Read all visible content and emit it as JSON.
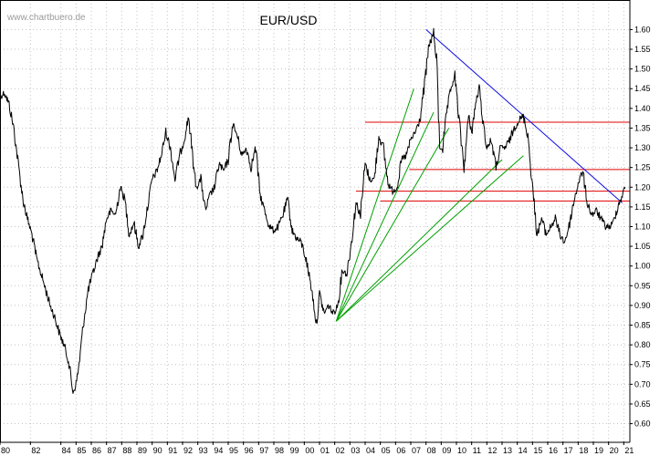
{
  "chart_data": {
    "type": "line",
    "title": "EUR/USD",
    "watermark": "www.chartbuero.de",
    "xlabel": "",
    "ylabel": "",
    "x_range": [
      1980.0,
      2021.4
    ],
    "ylim": [
      0.555,
      1.675
    ],
    "y_ticks": [
      0.6,
      0.65,
      0.7,
      0.75,
      0.8,
      0.85,
      0.9,
      0.95,
      1.0,
      1.05,
      1.1,
      1.15,
      1.2,
      1.25,
      1.3,
      1.35,
      1.4,
      1.45,
      1.5,
      1.55,
      1.6
    ],
    "y_tick_labels": [
      "0.60",
      "0.65",
      "0.70",
      "0.75",
      "0.80",
      "0.85",
      "0.90",
      "0.95",
      "1.00",
      "1.05",
      "1.10",
      "1.15",
      "1.20",
      "1.25",
      "1.30",
      "1.35",
      "1.40",
      "1.45",
      "1.50",
      "1.55",
      "1.60"
    ],
    "x_ticks": [
      1980,
      1982,
      1984,
      1985,
      1986,
      1987,
      1988,
      1989,
      1990,
      1991,
      1992,
      1993,
      1994,
      1995,
      1996,
      1997,
      1998,
      1999,
      2000,
      2001,
      2002,
      2003,
      2004,
      2005,
      2006,
      2007,
      2008,
      2009,
      2010,
      2011,
      2012,
      2013,
      2014,
      2015,
      2016,
      2017,
      2018,
      2019,
      2020,
      2021
    ],
    "x_tick_labels": [
      "80",
      "82",
      "84",
      "85",
      "86",
      "87",
      "88",
      "89",
      "90",
      "91",
      "92",
      "93",
      "94",
      "95",
      "96",
      "97",
      "98",
      "99",
      "00",
      "01",
      "02",
      "03",
      "04",
      "05",
      "06",
      "07",
      "08",
      "09",
      "10",
      "11",
      "12",
      "13",
      "14",
      "15",
      "16",
      "17",
      "18",
      "19",
      "20",
      "21"
    ],
    "grid": true,
    "y_axis_position": "right",
    "series": [
      {
        "color": "#000000",
        "x": [
          1980.0,
          1980.3,
          1980.6,
          1980.9,
          1981.2,
          1981.5,
          1981.8,
          1982.1,
          1982.4,
          1982.7,
          1983.0,
          1983.3,
          1983.6,
          1983.9,
          1984.2,
          1984.5,
          1984.8,
          1985.0,
          1985.2,
          1985.5,
          1985.8,
          1986.1,
          1986.4,
          1986.7,
          1987.0,
          1987.3,
          1987.6,
          1987.9,
          1988.2,
          1988.5,
          1988.8,
          1989.1,
          1989.4,
          1989.7,
          1990.0,
          1990.3,
          1990.6,
          1990.9,
          1991.2,
          1991.5,
          1991.8,
          1992.1,
          1992.4,
          1992.7,
          1992.9,
          1993.2,
          1993.5,
          1993.8,
          1994.1,
          1994.4,
          1994.7,
          1995.0,
          1995.3,
          1995.6,
          1995.9,
          1996.2,
          1996.5,
          1996.8,
          1997.1,
          1997.4,
          1997.7,
          1998.0,
          1998.3,
          1998.6,
          1998.9,
          1999.2,
          1999.5,
          1999.8,
          2000.1,
          2000.4,
          2000.6,
          2000.8,
          2001.0,
          2001.3,
          2001.6,
          2001.9,
          2002.2,
          2002.5,
          2002.8,
          2003.1,
          2003.4,
          2003.7,
          2004.0,
          2004.3,
          2004.6,
          2004.9,
          2005.2,
          2005.5,
          2005.8,
          2006.1,
          2006.4,
          2006.7,
          2007.0,
          2007.3,
          2007.6,
          2007.9,
          2008.2,
          2008.5,
          2008.7,
          2008.9,
          2009.1,
          2009.4,
          2009.7,
          2009.9,
          2010.2,
          2010.5,
          2010.8,
          2011.0,
          2011.3,
          2011.5,
          2011.8,
          2012.0,
          2012.3,
          2012.6,
          2012.9,
          2013.2,
          2013.5,
          2013.8,
          2014.1,
          2014.4,
          2014.7,
          2015.0,
          2015.3,
          2015.6,
          2015.9,
          2016.2,
          2016.5,
          2016.8,
          2017.1,
          2017.4,
          2017.7,
          2018.0,
          2018.3,
          2018.6,
          2018.9,
          2019.2,
          2019.5,
          2019.8,
          2020.1,
          2020.3,
          2020.6,
          2020.9,
          2021.1
        ],
        "y": [
          1.43,
          1.44,
          1.41,
          1.35,
          1.26,
          1.17,
          1.12,
          1.08,
          1.02,
          0.98,
          0.94,
          0.9,
          0.87,
          0.83,
          0.8,
          0.76,
          0.68,
          0.7,
          0.75,
          0.86,
          0.94,
          0.98,
          1.02,
          1.05,
          1.12,
          1.14,
          1.13,
          1.2,
          1.17,
          1.08,
          1.11,
          1.05,
          1.08,
          1.15,
          1.22,
          1.24,
          1.28,
          1.34,
          1.3,
          1.22,
          1.28,
          1.32,
          1.38,
          1.26,
          1.2,
          1.22,
          1.14,
          1.18,
          1.2,
          1.26,
          1.24,
          1.27,
          1.36,
          1.33,
          1.28,
          1.3,
          1.25,
          1.3,
          1.18,
          1.14,
          1.1,
          1.09,
          1.1,
          1.13,
          1.17,
          1.09,
          1.07,
          1.06,
          1.02,
          0.96,
          0.91,
          0.85,
          0.93,
          0.88,
          0.9,
          0.88,
          0.9,
          0.99,
          0.98,
          1.06,
          1.16,
          1.13,
          1.26,
          1.22,
          1.22,
          1.33,
          1.3,
          1.21,
          1.19,
          1.2,
          1.27,
          1.28,
          1.32,
          1.34,
          1.37,
          1.46,
          1.56,
          1.59,
          1.52,
          1.3,
          1.3,
          1.4,
          1.46,
          1.48,
          1.36,
          1.25,
          1.38,
          1.34,
          1.42,
          1.45,
          1.35,
          1.3,
          1.32,
          1.25,
          1.3,
          1.3,
          1.32,
          1.35,
          1.37,
          1.38,
          1.33,
          1.2,
          1.08,
          1.12,
          1.08,
          1.1,
          1.12,
          1.08,
          1.06,
          1.1,
          1.16,
          1.21,
          1.24,
          1.16,
          1.13,
          1.14,
          1.12,
          1.1,
          1.1,
          1.11,
          1.15,
          1.18,
          1.2
        ]
      }
    ],
    "annotations": {
      "horizontal_lines": [
        {
          "y": 1.365,
          "x_start": 2004.0,
          "x_end": 2021.4,
          "color": "#e00000"
        },
        {
          "y": 1.245,
          "x_start": 2006.9,
          "x_end": 2021.4,
          "color": "#e00000"
        },
        {
          "y": 1.19,
          "x_start": 2003.4,
          "x_end": 2021.4,
          "color": "#e00000"
        },
        {
          "y": 1.165,
          "x_start": 2005.0,
          "x_end": 2021.4,
          "color": "#e00000"
        }
      ],
      "trend_line": {
        "x1": 2008.0,
        "y1": 1.6,
        "x2": 2020.9,
        "y2": 1.16,
        "color": "#1010e0"
      },
      "fan_lines": [
        {
          "x1": 2002.1,
          "y1": 0.86,
          "x2": 2007.2,
          "y2": 1.45,
          "color": "#00a000"
        },
        {
          "x1": 2002.1,
          "y1": 0.86,
          "x2": 2008.5,
          "y2": 1.39,
          "color": "#00a000"
        },
        {
          "x1": 2002.1,
          "y1": 0.86,
          "x2": 2009.5,
          "y2": 1.35,
          "color": "#00a000"
        },
        {
          "x1": 2002.1,
          "y1": 0.86,
          "x2": 2013.0,
          "y2": 1.27,
          "color": "#00a000"
        },
        {
          "x1": 2002.1,
          "y1": 0.86,
          "x2": 2014.4,
          "y2": 1.28,
          "color": "#00a000"
        }
      ]
    }
  }
}
